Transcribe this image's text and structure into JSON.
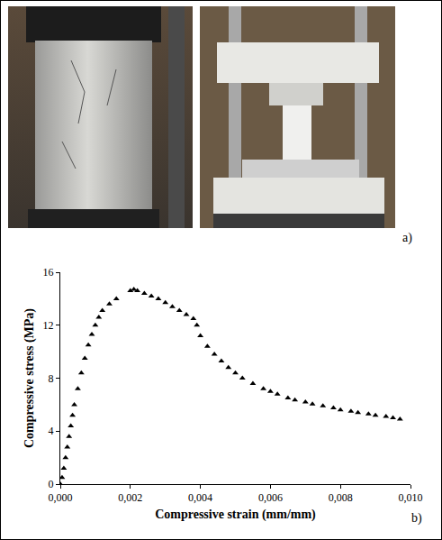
{
  "panel_labels": [
    "a)",
    "b)"
  ],
  "chart_data": {
    "type": "scatter",
    "x_label": "Compressive strain (mm/mm)",
    "y_label": "Compressive stress (MPa)",
    "marker": "triangle-up",
    "color": "#000000",
    "grid": false,
    "x": [
      0,
      5e-05,
      0.0001,
      0.00015,
      0.0002,
      0.00025,
      0.0003,
      0.00035,
      0.0004,
      0.0005,
      0.0006,
      0.0007,
      0.0008,
      0.0009,
      0.001,
      0.0011,
      0.0012,
      0.0014,
      0.0016,
      0.002,
      0.0021,
      0.0022,
      0.0024,
      0.0026,
      0.0028,
      0.003,
      0.0032,
      0.0034,
      0.0036,
      0.0038,
      0.0039,
      0.004,
      0.0042,
      0.0044,
      0.0046,
      0.0048,
      0.005,
      0.0052,
      0.0055,
      0.0058,
      0.006,
      0.0062,
      0.0065,
      0.0067,
      0.007,
      0.0072,
      0.0075,
      0.0078,
      0.008,
      0.0083,
      0.0085,
      0.0088,
      0.009,
      0.0093,
      0.0095,
      0.0097
    ],
    "values": [
      0,
      0.5,
      1.2,
      2.0,
      2.8,
      3.6,
      4.4,
      5.2,
      6.0,
      7.2,
      8.4,
      9.5,
      10.5,
      11.3,
      12.0,
      12.6,
      13.1,
      13.6,
      14.0,
      14.6,
      14.7,
      14.6,
      14.4,
      14.2,
      14.0,
      13.7,
      13.4,
      13.1,
      12.8,
      12.5,
      12.0,
      11.2,
      10.4,
      9.8,
      9.3,
      8.8,
      8.4,
      8.0,
      7.6,
      7.2,
      7.0,
      6.8,
      6.5,
      6.35,
      6.2,
      6.05,
      5.9,
      5.75,
      5.6,
      5.5,
      5.4,
      5.3,
      5.2,
      5.1,
      5.0,
      4.9
    ],
    "xlim": [
      0,
      0.01
    ],
    "xticks": [
      {
        "value": 0,
        "label": "0,000"
      },
      {
        "value": 0.002,
        "label": "0,002"
      },
      {
        "value": 0.004,
        "label": "0,004"
      },
      {
        "value": 0.006,
        "label": "0,006"
      },
      {
        "value": 0.008,
        "label": "0,008"
      },
      {
        "value": 0.01,
        "label": "0,010"
      }
    ],
    "ylim": [
      0,
      16
    ],
    "yticks": [
      0,
      4,
      8,
      12,
      16
    ]
  }
}
